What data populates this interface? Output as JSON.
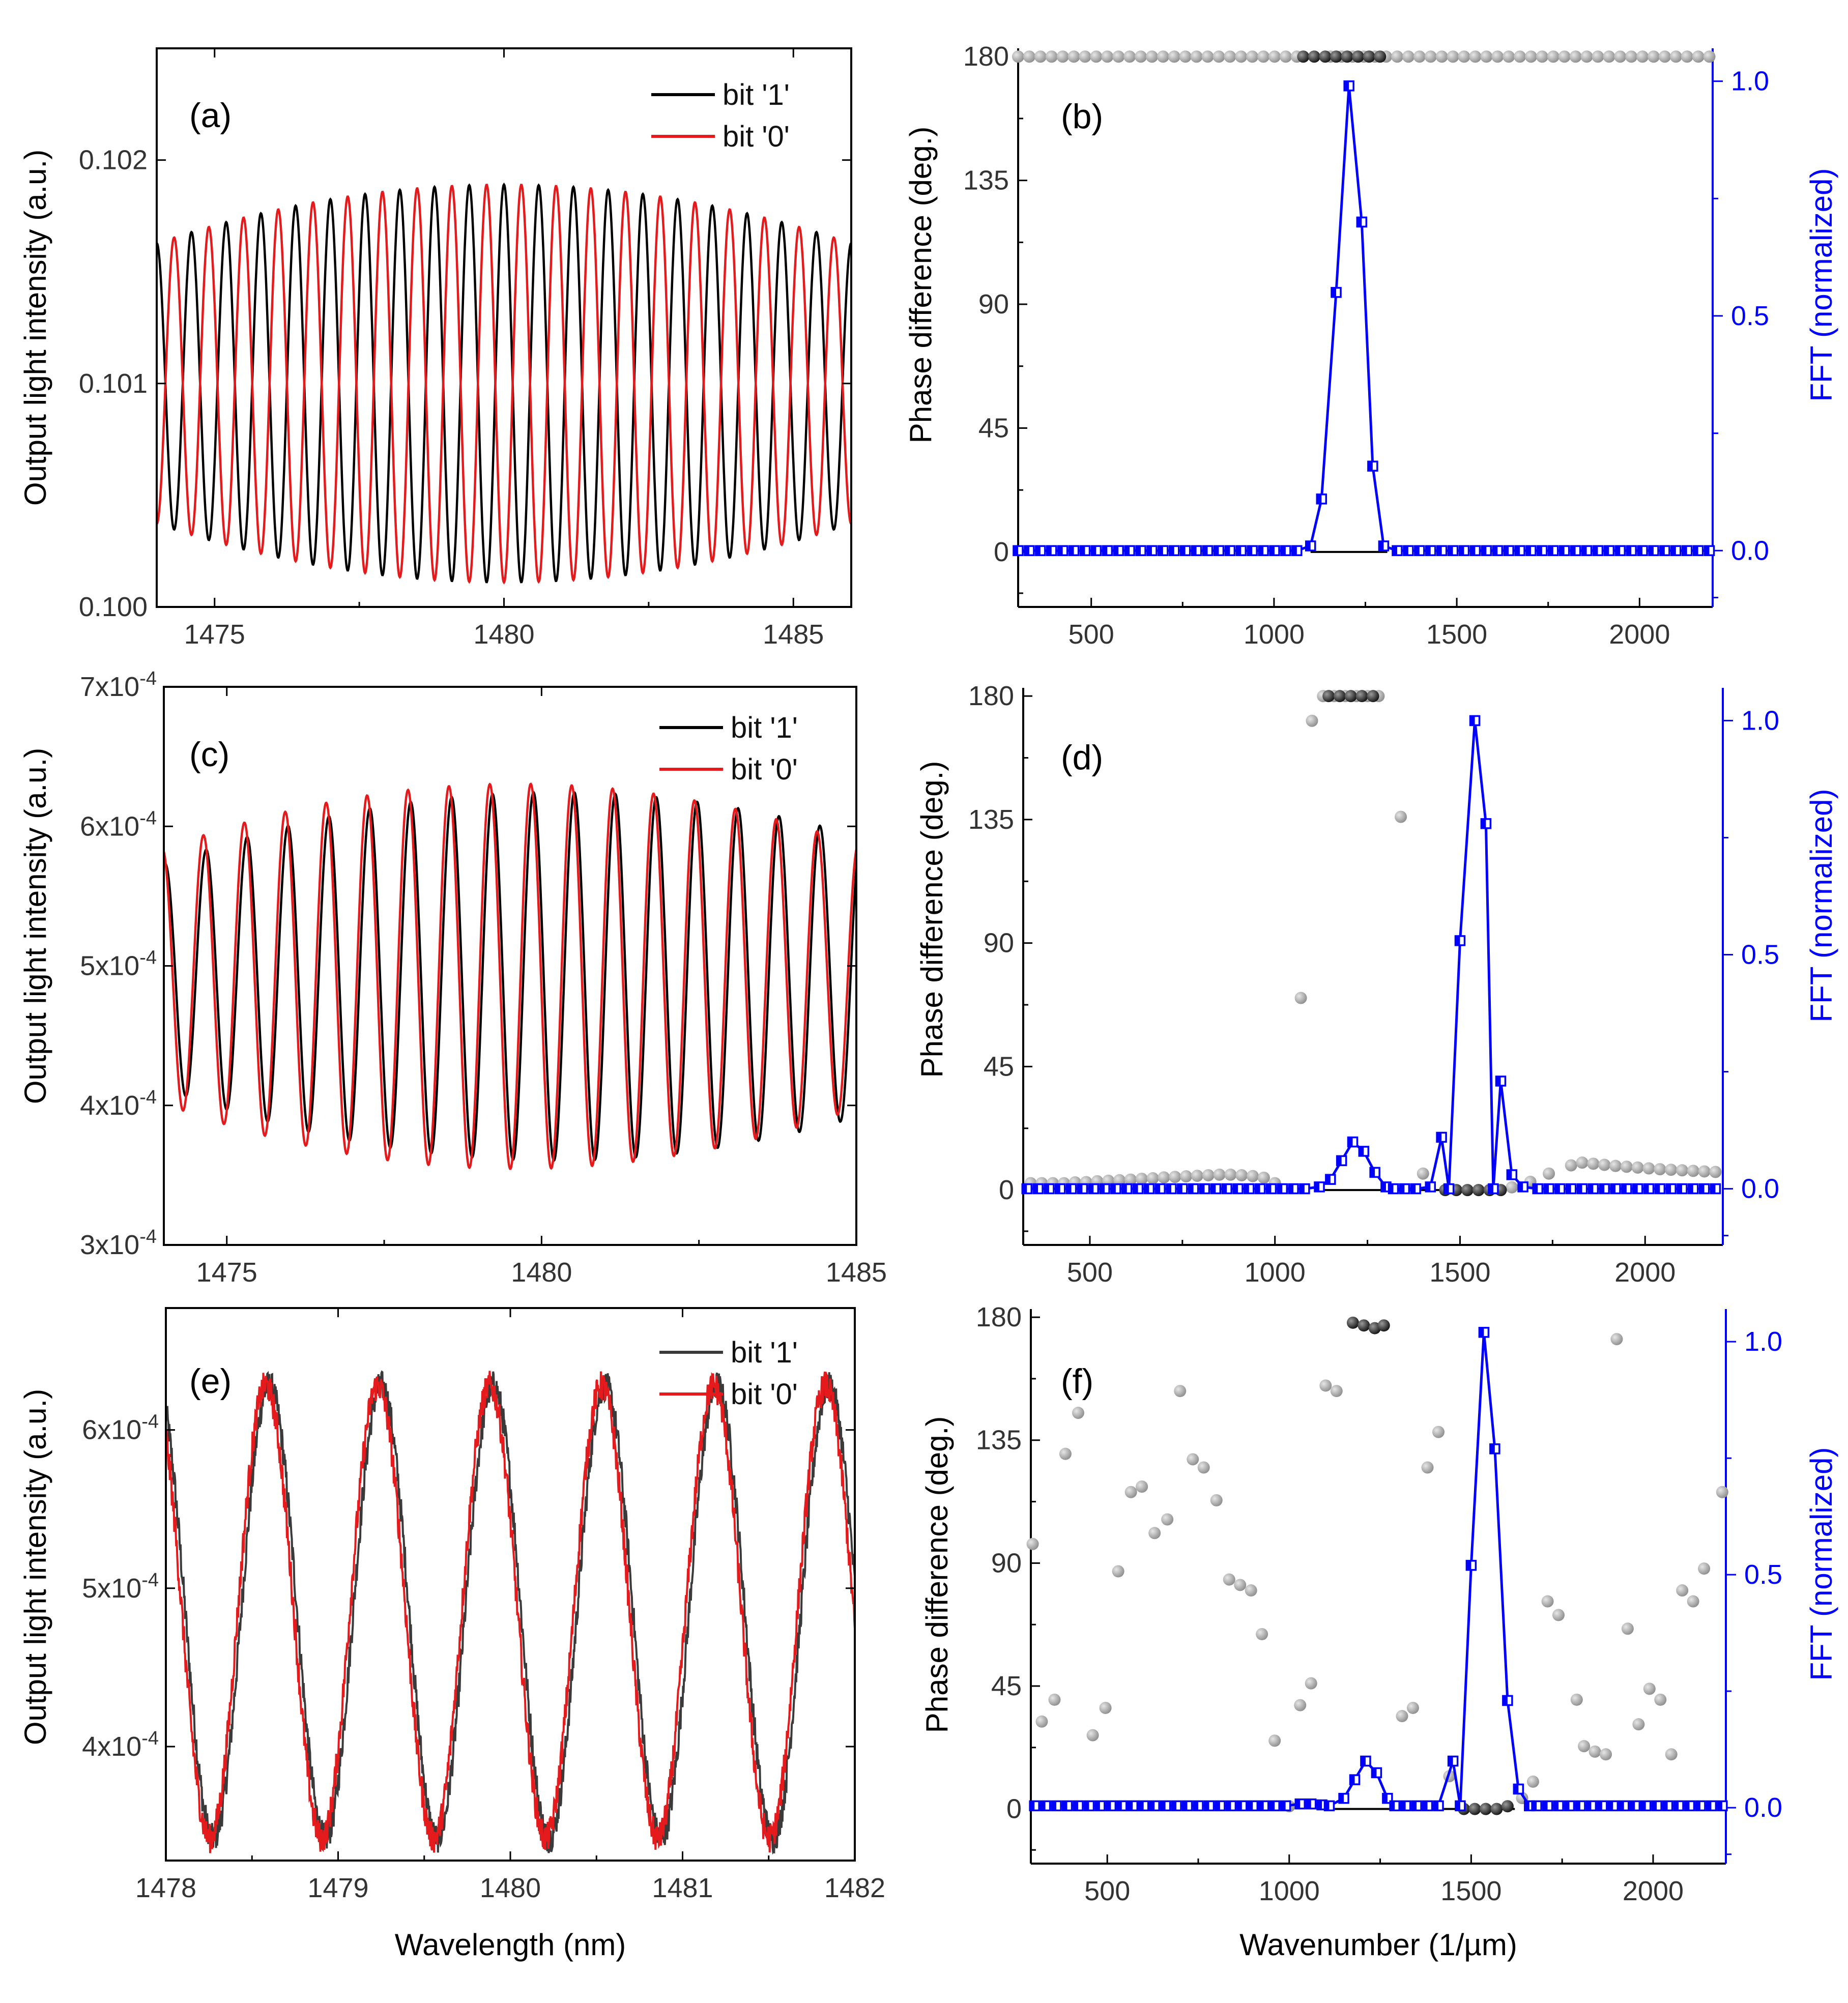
{
  "colors": {
    "bit1": "#000000",
    "bit0": "#e41a1c",
    "bit1_noisy": "#3a3a3a",
    "fft": "#0000ff",
    "phase_gray": "#8c8c8c",
    "phase_black": "#111111",
    "axis": "#000000",
    "tick_gray": "#333333"
  },
  "chart_data": [
    {
      "id": "a",
      "panel_label": "(a)",
      "type": "line",
      "ylabel": "Output light intensity (a.u.)",
      "xlabel": "",
      "xlim": [
        1474,
        1486
      ],
      "ylim": [
        0.1,
        0.1025
      ],
      "xticks": [
        1475,
        1480,
        1485
      ],
      "xtick_labels": [
        "1475",
        "1480",
        "1485"
      ],
      "yticks": [
        0.1,
        0.101,
        0.102
      ],
      "ytick_labels": [
        "0.100",
        "0.101",
        "0.102"
      ],
      "legend": {
        "position": "top-right",
        "entries": [
          "bit '1'",
          "bit '0'"
        ]
      },
      "series": [
        {
          "name": "bit '1'",
          "period_nm": 0.6,
          "phase_deg": 0,
          "mean": 0.101,
          "amplitude_center": 0.00089,
          "amplitude_edge": 0.00048,
          "envelope_center_nm": 1480,
          "envelope_halfwidth_nm": 7.5,
          "start_nm": 1474,
          "end_nm": 1486
        },
        {
          "name": "bit '0'",
          "period_nm": 0.6,
          "phase_deg": 180,
          "mean": 0.101,
          "amplitude_center": 0.00089,
          "amplitude_edge": 0.00048,
          "envelope_center_nm": 1480,
          "envelope_halfwidth_nm": 7.5,
          "start_nm": 1474,
          "end_nm": 1486
        }
      ]
    },
    {
      "id": "b",
      "panel_label": "(b)",
      "type": "scatter+line",
      "ylabel": "Phase difference (deg.)",
      "y2label": "FFT (normalized)",
      "xlabel": "",
      "xlim": [
        300,
        2200
      ],
      "ylim": [
        -20,
        183
      ],
      "y2lim": [
        -0.12,
        1.07
      ],
      "xticks": [
        500,
        1000,
        1500,
        2000
      ],
      "xtick_labels": [
        "500",
        "1000",
        "1500",
        "2000"
      ],
      "yticks": [
        0,
        45,
        90,
        135,
        180
      ],
      "ytick_labels": [
        "0",
        "45",
        "90",
        "135",
        "180"
      ],
      "y2ticks": [
        0,
        0.5,
        1
      ],
      "y2tick_labels": [
        "0.0",
        "0.5",
        "1.0"
      ],
      "phase_gray": {
        "x_start": 300,
        "x_step": 30.5,
        "count": 63,
        "y": 180
      },
      "phase_black": [
        {
          "x": 1080,
          "y": 180
        },
        {
          "x": 1110,
          "y": 180
        },
        {
          "x": 1140,
          "y": 180
        },
        {
          "x": 1170,
          "y": 180
        },
        {
          "x": 1200,
          "y": 180
        },
        {
          "x": 1230,
          "y": 180
        },
        {
          "x": 1260,
          "y": 180
        },
        {
          "x": 1290,
          "y": 180
        }
      ],
      "baseline_segment": [
        1100,
        1310
      ],
      "fft": {
        "x_start": 300,
        "x_step": 30.5,
        "count": 63,
        "baseline": 0,
        "peak": [
          {
            "x": 1100,
            "y": 0.01
          },
          {
            "x": 1130,
            "y": 0.11
          },
          {
            "x": 1170,
            "y": 0.55
          },
          {
            "x": 1205,
            "y": 0.99
          },
          {
            "x": 1240,
            "y": 0.7
          },
          {
            "x": 1270,
            "y": 0.18
          },
          {
            "x": 1300,
            "y": 0.01
          }
        ]
      }
    },
    {
      "id": "c",
      "panel_label": "(c)",
      "type": "line",
      "ylabel": "Output light intensity (a.u.)",
      "xlabel": "",
      "xlim": [
        1474,
        1485
      ],
      "ylim": [
        0.0003,
        0.0007
      ],
      "xticks": [
        1475,
        1480,
        1485
      ],
      "xtick_labels": [
        "1475",
        "1480",
        "1485"
      ],
      "yticks": [
        0.0003,
        0.0004,
        0.0005,
        0.0006,
        0.0007
      ],
      "ytick_labels": [
        {
          "mant": "3x10",
          "exp": "-4"
        },
        {
          "mant": "4x10",
          "exp": "-4"
        },
        {
          "mant": "5x10",
          "exp": "-4"
        },
        {
          "mant": "6x10",
          "exp": "-4"
        },
        {
          "mant": "7x10",
          "exp": "-4"
        }
      ],
      "legend": {
        "position": "top-right",
        "entries": [
          "bit '1'",
          "bit '0'"
        ]
      },
      "series": [
        {
          "name": "bit '1'",
          "period_nm": 0.65,
          "phase_deg": -12,
          "mean": 0.0004925,
          "amplitude_center": 0.000132,
          "amplitude_edge": 7.5e-05,
          "envelope_center_nm": 1480.2,
          "envelope_halfwidth_nm": 6.5,
          "start_nm": 1474,
          "end_nm": 1485
        },
        {
          "name": "bit '0'",
          "period_nm": 0.65,
          "phase_deg": 12,
          "mean": 0.0004925,
          "amplitude_center": 0.000138,
          "amplitude_edge": 7.5e-05,
          "envelope_center_nm": 1479.6,
          "envelope_halfwidth_nm": 6.5,
          "start_nm": 1474,
          "end_nm": 1485
        }
      ]
    },
    {
      "id": "d",
      "panel_label": "(d)",
      "type": "scatter+line",
      "ylabel": "Phase difference (deg.)",
      "y2label": "FFT (normalized)",
      "xlabel": "",
      "xlim": [
        320,
        2210
      ],
      "ylim": [
        -20,
        183
      ],
      "y2lim": [
        -0.12,
        1.07
      ],
      "xticks": [
        500,
        1000,
        1500,
        2000
      ],
      "xtick_labels": [
        "500",
        "1000",
        "1500",
        "2000"
      ],
      "yticks": [
        0,
        45,
        90,
        135,
        180
      ],
      "ytick_labels": [
        "0",
        "45",
        "90",
        "135",
        "180"
      ],
      "y2ticks": [
        0,
        0.5,
        1
      ],
      "y2tick_labels": [
        "0.0",
        "0.5",
        "1.0"
      ],
      "phase_gray": [
        {
          "x": 340,
          "y": 2.5
        },
        {
          "x": 370,
          "y": 2.5
        },
        {
          "x": 400,
          "y": 2.5
        },
        {
          "x": 430,
          "y": 2.5
        },
        {
          "x": 460,
          "y": 2.8
        },
        {
          "x": 490,
          "y": 2.9
        },
        {
          "x": 520,
          "y": 3.2
        },
        {
          "x": 550,
          "y": 3.4
        },
        {
          "x": 580,
          "y": 3.6
        },
        {
          "x": 610,
          "y": 3.8
        },
        {
          "x": 640,
          "y": 4.1
        },
        {
          "x": 670,
          "y": 4.3
        },
        {
          "x": 700,
          "y": 4.6
        },
        {
          "x": 730,
          "y": 4.8
        },
        {
          "x": 760,
          "y": 5
        },
        {
          "x": 790,
          "y": 5.2
        },
        {
          "x": 820,
          "y": 5.4
        },
        {
          "x": 850,
          "y": 5.6
        },
        {
          "x": 880,
          "y": 5.6
        },
        {
          "x": 910,
          "y": 5.4
        },
        {
          "x": 940,
          "y": 5.1
        },
        {
          "x": 970,
          "y": 4.5
        },
        {
          "x": 1000,
          "y": 2.5
        },
        {
          "x": 1070,
          "y": 70
        },
        {
          "x": 1100,
          "y": 171
        },
        {
          "x": 1340,
          "y": 136
        },
        {
          "x": 1400,
          "y": 6
        },
        {
          "x": 1130,
          "y": 180
        },
        {
          "x": 1160,
          "y": 180
        },
        {
          "x": 1190,
          "y": 180
        },
        {
          "x": 1220,
          "y": 180
        },
        {
          "x": 1250,
          "y": 180
        },
        {
          "x": 1280,
          "y": 180
        },
        {
          "x": 1640,
          "y": 1
        },
        {
          "x": 1690,
          "y": 3
        },
        {
          "x": 1740,
          "y": 6
        },
        {
          "x": 1800,
          "y": 9
        },
        {
          "x": 1830,
          "y": 10
        },
        {
          "x": 1860,
          "y": 9.6
        },
        {
          "x": 1890,
          "y": 9.2
        },
        {
          "x": 1920,
          "y": 8.8
        },
        {
          "x": 1950,
          "y": 8.5
        },
        {
          "x": 1980,
          "y": 8.2
        },
        {
          "x": 2010,
          "y": 7.9
        },
        {
          "x": 2040,
          "y": 7.6
        },
        {
          "x": 2070,
          "y": 7.4
        },
        {
          "x": 2100,
          "y": 7.2
        },
        {
          "x": 2130,
          "y": 7
        },
        {
          "x": 2160,
          "y": 6.8
        },
        {
          "x": 2190,
          "y": 6.6
        }
      ],
      "phase_black": [
        {
          "x": 1145,
          "y": 180
        },
        {
          "x": 1175,
          "y": 180
        },
        {
          "x": 1205,
          "y": 180
        },
        {
          "x": 1235,
          "y": 180
        },
        {
          "x": 1265,
          "y": 180
        },
        {
          "x": 1460,
          "y": 0
        },
        {
          "x": 1490,
          "y": 0
        },
        {
          "x": 1520,
          "y": 0
        },
        {
          "x": 1550,
          "y": 0
        },
        {
          "x": 1580,
          "y": 0
        },
        {
          "x": 1610,
          "y": 0
        }
      ],
      "baseline_segment": [
        1120,
        1620
      ],
      "fft": {
        "x_start": 330,
        "x_step": 30,
        "count": 63,
        "baseline": 0,
        "peak": [
          {
            "x": 1120,
            "y": 0.004
          },
          {
            "x": 1150,
            "y": 0.02
          },
          {
            "x": 1180,
            "y": 0.06
          },
          {
            "x": 1210,
            "y": 0.1
          },
          {
            "x": 1240,
            "y": 0.08
          },
          {
            "x": 1270,
            "y": 0.035
          },
          {
            "x": 1300,
            "y": 0.004
          },
          {
            "x": 1420,
            "y": 0.004
          },
          {
            "x": 1450,
            "y": 0.11
          },
          {
            "x": 1500,
            "y": 0.53
          },
          {
            "x": 1540,
            "y": 1.0
          },
          {
            "x": 1570,
            "y": 0.78
          },
          {
            "x": 1610,
            "y": 0.23
          },
          {
            "x": 1640,
            "y": 0.03
          },
          {
            "x": 1670,
            "y": 0.004
          }
        ]
      }
    },
    {
      "id": "e",
      "panel_label": "(e)",
      "type": "line",
      "ylabel": "Output light intensity (a.u.)",
      "xlabel": "Wavelength (nm)",
      "xlim": [
        1478,
        1482
      ],
      "ylim": [
        0.000328,
        0.000677
      ],
      "xticks": [
        1478,
        1479,
        1480,
        1481,
        1482
      ],
      "xtick_labels": [
        "1478",
        "1479",
        "1480",
        "1481",
        "1482"
      ],
      "yticks": [
        0.0004,
        0.0005,
        0.0006
      ],
      "ytick_labels": [
        {
          "mant": "4x10",
          "exp": "-4"
        },
        {
          "mant": "5x10",
          "exp": "-4"
        },
        {
          "mant": "6x10",
          "exp": "-4"
        }
      ],
      "legend": {
        "position": "top-right",
        "entries": [
          "bit '1'",
          "bit '0'"
        ]
      },
      "series": [
        {
          "name": "bit '1'",
          "period_nm": 0.65,
          "first_peak_nm": 1478.6,
          "mean": 0.000485,
          "amplitude": 0.000143,
          "noise": 9.5e-06,
          "start_nm": 1478,
          "end_nm": 1482
        },
        {
          "name": "bit '0'",
          "period_nm": 0.65,
          "first_peak_nm": 1478.58,
          "mean": 0.000485,
          "amplitude": 0.000143,
          "noise": 9.5e-06,
          "start_nm": 1478,
          "end_nm": 1482
        }
      ]
    },
    {
      "id": "f",
      "panel_label": "(f)",
      "type": "scatter+line",
      "ylabel": "Phase difference (deg.)",
      "y2label": "FFT (normalized)",
      "xlabel": "Wavenumber (1/µm)",
      "xlim": [
        290,
        2200
      ],
      "ylim": [
        -20,
        183
      ],
      "y2lim": [
        -0.12,
        1.07
      ],
      "xticks": [
        500,
        1000,
        1500,
        2000
      ],
      "xtick_labels": [
        "500",
        "1000",
        "1500",
        "2000"
      ],
      "yticks": [
        0,
        45,
        90,
        135,
        180
      ],
      "ytick_labels": [
        "0",
        "45",
        "90",
        "135",
        "180"
      ],
      "y2ticks": [
        0,
        0.5,
        1
      ],
      "y2tick_labels": [
        "0.0",
        "0.5",
        "1.0"
      ],
      "phase_gray": [
        {
          "x": 295,
          "y": 97
        },
        {
          "x": 320,
          "y": 32
        },
        {
          "x": 355,
          "y": 40
        },
        {
          "x": 385,
          "y": 130
        },
        {
          "x": 420,
          "y": 145
        },
        {
          "x": 460,
          "y": 27
        },
        {
          "x": 495,
          "y": 37
        },
        {
          "x": 530,
          "y": 87
        },
        {
          "x": 565,
          "y": 116
        },
        {
          "x": 595,
          "y": 118
        },
        {
          "x": 630,
          "y": 101
        },
        {
          "x": 665,
          "y": 106
        },
        {
          "x": 700,
          "y": 153
        },
        {
          "x": 735,
          "y": 128
        },
        {
          "x": 765,
          "y": 125
        },
        {
          "x": 800,
          "y": 113
        },
        {
          "x": 835,
          "y": 84
        },
        {
          "x": 865,
          "y": 82
        },
        {
          "x": 895,
          "y": 80
        },
        {
          "x": 925,
          "y": 64
        },
        {
          "x": 960,
          "y": 25
        },
        {
          "x": 1000,
          "y": 1
        },
        {
          "x": 1030,
          "y": 38
        },
        {
          "x": 1060,
          "y": 46
        },
        {
          "x": 1100,
          "y": 155
        },
        {
          "x": 1130,
          "y": 153
        },
        {
          "x": 1310,
          "y": 34
        },
        {
          "x": 1340,
          "y": 37
        },
        {
          "x": 1380,
          "y": 125
        },
        {
          "x": 1410,
          "y": 138
        },
        {
          "x": 1440,
          "y": 12
        },
        {
          "x": 1640,
          "y": 4
        },
        {
          "x": 1670,
          "y": 10
        },
        {
          "x": 1710,
          "y": 76
        },
        {
          "x": 1740,
          "y": 71
        },
        {
          "x": 1790,
          "y": 40
        },
        {
          "x": 1810,
          "y": 23
        },
        {
          "x": 1840,
          "y": 21
        },
        {
          "x": 1870,
          "y": 20
        },
        {
          "x": 1900,
          "y": 172
        },
        {
          "x": 1930,
          "y": 66
        },
        {
          "x": 1960,
          "y": 31
        },
        {
          "x": 1990,
          "y": 44
        },
        {
          "x": 2020,
          "y": 40
        },
        {
          "x": 2050,
          "y": 20
        },
        {
          "x": 2080,
          "y": 80
        },
        {
          "x": 2110,
          "y": 76
        },
        {
          "x": 2140,
          "y": 88
        },
        {
          "x": 2190,
          "y": 116
        }
      ],
      "phase_black": [
        {
          "x": 1175,
          "y": 178
        },
        {
          "x": 1205,
          "y": 177
        },
        {
          "x": 1235,
          "y": 176
        },
        {
          "x": 1260,
          "y": 177
        },
        {
          "x": 1480,
          "y": 0
        },
        {
          "x": 1510,
          "y": 0
        },
        {
          "x": 1540,
          "y": 0
        },
        {
          "x": 1570,
          "y": 0
        },
        {
          "x": 1600,
          "y": 1
        }
      ],
      "baseline_segment": [
        1100,
        1620
      ],
      "fft": {
        "x_start": 300,
        "x_step": 30,
        "count": 64,
        "baseline": 0.004,
        "peak": [
          {
            "x": 1030,
            "y": 0.008
          },
          {
            "x": 1060,
            "y": 0.008
          },
          {
            "x": 1090,
            "y": 0.006
          },
          {
            "x": 1150,
            "y": 0.02
          },
          {
            "x": 1180,
            "y": 0.06
          },
          {
            "x": 1210,
            "y": 0.1
          },
          {
            "x": 1240,
            "y": 0.075
          },
          {
            "x": 1270,
            "y": 0.02
          },
          {
            "x": 1450,
            "y": 0.1
          },
          {
            "x": 1500,
            "y": 0.52
          },
          {
            "x": 1535,
            "y": 1.02
          },
          {
            "x": 1565,
            "y": 0.77
          },
          {
            "x": 1600,
            "y": 0.23
          },
          {
            "x": 1630,
            "y": 0.04
          },
          {
            "x": 1660,
            "y": 0.004
          }
        ]
      }
    }
  ]
}
